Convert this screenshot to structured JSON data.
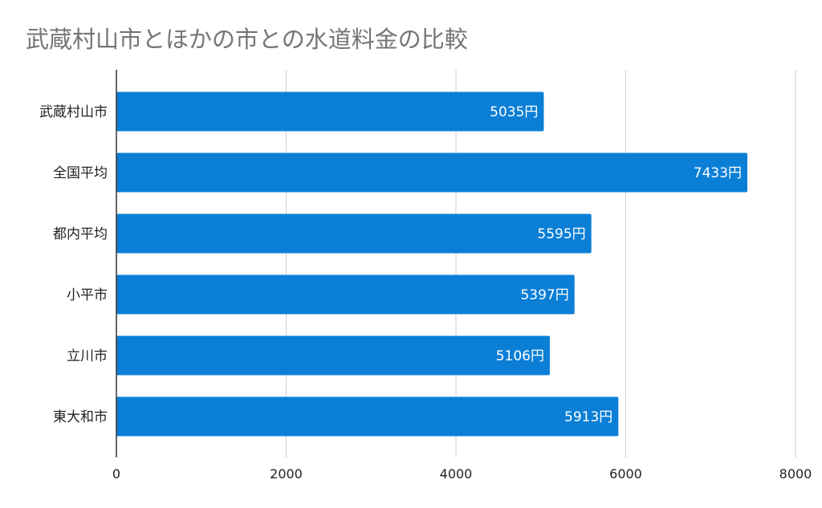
{
  "chart_data": {
    "type": "bar",
    "orientation": "horizontal",
    "title": "武蔵村山市とほかの市との水道料金の比較",
    "categories": [
      "武蔵村山市",
      "全国平均",
      "都内平均",
      "小平市",
      "立川市",
      "東大和市"
    ],
    "values": [
      5035,
      7433,
      5595,
      5397,
      5106,
      5913
    ],
    "data_labels": [
      "5035円",
      "7433円",
      "5595円",
      "5397円",
      "5106円",
      "5913円"
    ],
    "xlim": [
      0,
      8000
    ],
    "x_ticks": [
      "0",
      "2000",
      "4000",
      "6000",
      "8000"
    ],
    "grid": true,
    "legend": "none",
    "bar_color": "#0b7fd6"
  }
}
